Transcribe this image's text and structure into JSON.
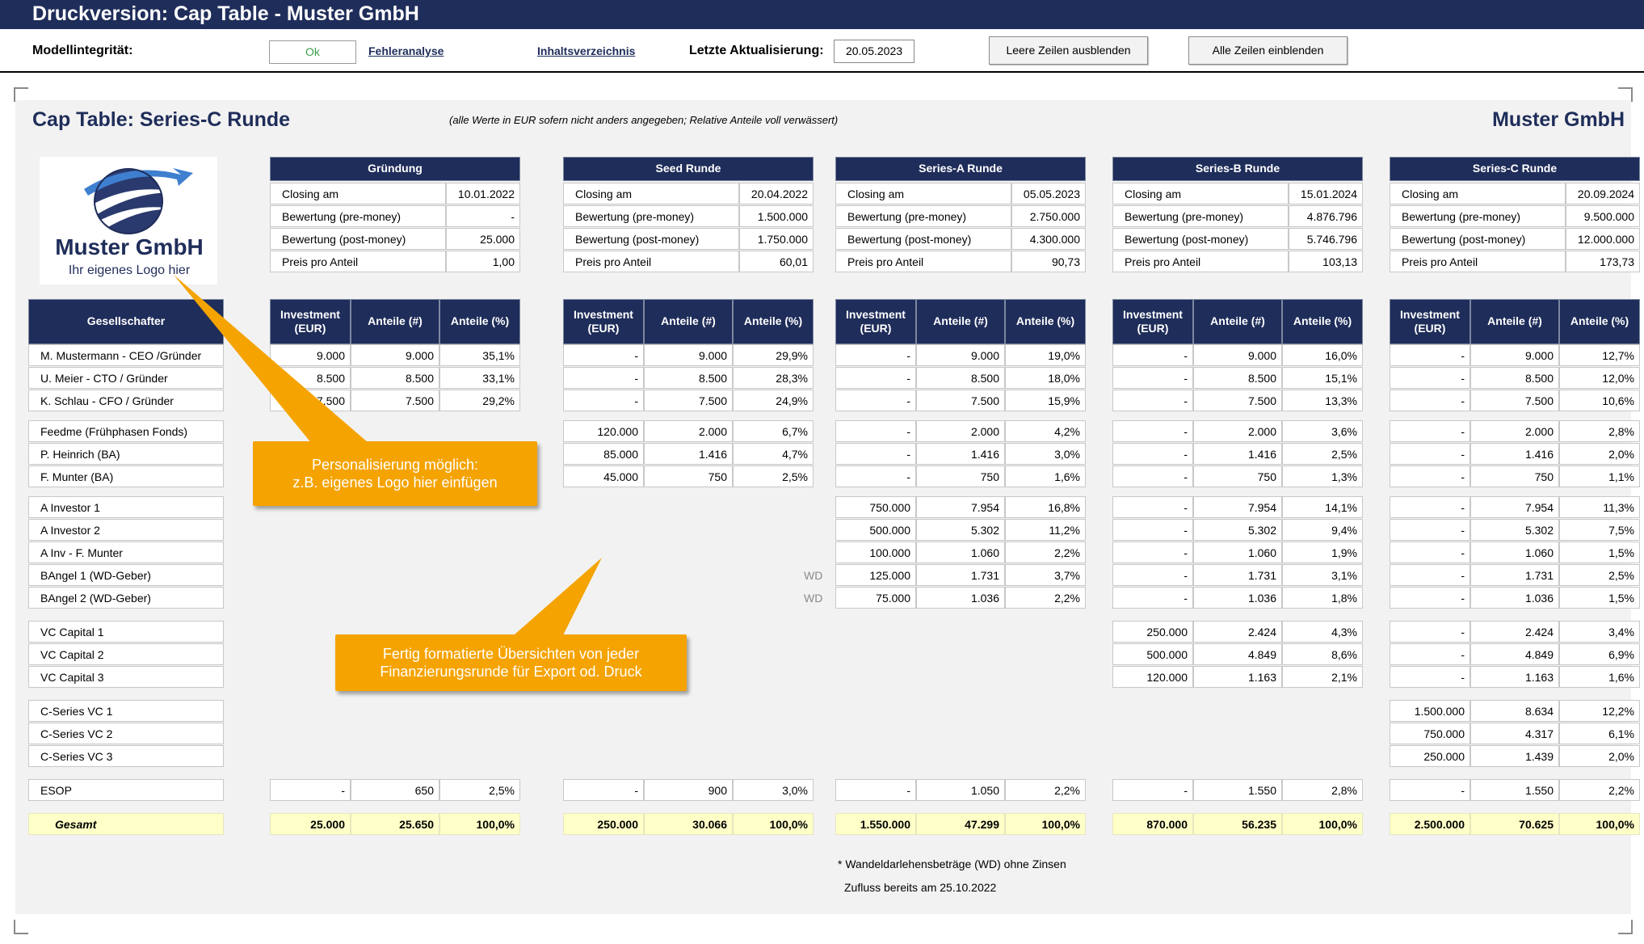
{
  "window": {
    "title": "Druckversion: Cap Table - Muster GmbH"
  },
  "toolbar": {
    "integrity_label": "Modellintegrität:",
    "integrity_value": "Ok",
    "error_link": "Fehleranalyse",
    "toc_link": "Inhaltsverzeichnis",
    "update_label": "Letzte Aktualisierung:",
    "update_date": "20.05.2023",
    "hide_button": "Leere Zeilen ausblenden",
    "show_button": "Alle Zeilen einblenden"
  },
  "sheet": {
    "title": "Cap Table: Series-C Runde",
    "note": "(alle Werte in EUR sofern nicht anders angegeben; Relative Anteile voll verwässert)",
    "company": "Muster GmbH",
    "logo_name": "Muster GmbH",
    "logo_sub": "Ihr eigenes Logo hier"
  },
  "colors": {
    "header": "#1f2d5a",
    "callout": "#f5a300",
    "total": "#ffffc8",
    "ok": "#3aa04a"
  },
  "info_labels": [
    "Closing am",
    "Bewertung (pre-money)",
    "Bewertung (post-money)",
    "Preis pro Anteil"
  ],
  "shareholder_header": "Gesellschafter",
  "col_headers": [
    "Investment (EUR)",
    "Anteile (#)",
    "Anteile (%)"
  ],
  "shareholders": [
    "M. Mustermann - CEO /Gründer",
    "U. Meier - CTO / Gründer",
    "K. Schlau - CFO / Gründer",
    "Feedme (Frühphasen Fonds)",
    "P. Heinrich (BA)",
    "F. Munter (BA)",
    "A Investor 1",
    "A Investor 2",
    "A Inv - F. Munter",
    "BAngel 1 (WD-Geber)",
    "BAngel 2 (WD-Geber)",
    "VC Capital 1",
    "VC Capital 2",
    "VC Capital 3",
    "C-Series VC 1",
    "C-Series VC 2",
    "C-Series VC 3",
    "ESOP"
  ],
  "total_label": "Gesamt",
  "rounds": [
    {
      "name": "Gründung",
      "info": [
        "10.01.2022",
        "-",
        "25.000",
        "1,00"
      ],
      "rows": [
        [
          "9.000",
          "9.000",
          "35,1%"
        ],
        [
          "8.500",
          "8.500",
          "33,1%"
        ],
        [
          "7.500",
          "7.500",
          "29,2%"
        ],
        null,
        null,
        null,
        null,
        null,
        null,
        null,
        null,
        null,
        null,
        null,
        null,
        null,
        null,
        [
          "-",
          "650",
          "2,5%"
        ]
      ],
      "total": [
        "25.000",
        "25.650",
        "100,0%"
      ]
    },
    {
      "name": "Seed Runde",
      "info": [
        "20.04.2022",
        "1.500.000",
        "1.750.000",
        "60,01"
      ],
      "rows": [
        [
          "-",
          "9.000",
          "29,9%"
        ],
        [
          "-",
          "8.500",
          "28,3%"
        ],
        [
          "-",
          "7.500",
          "24,9%"
        ],
        [
          "120.000",
          "2.000",
          "6,7%"
        ],
        [
          "85.000",
          "1.416",
          "4,7%"
        ],
        [
          "45.000",
          "750",
          "2,5%"
        ],
        null,
        null,
        null,
        null,
        null,
        null,
        null,
        null,
        null,
        null,
        null,
        [
          "-",
          "900",
          "3,0%"
        ]
      ],
      "total": [
        "250.000",
        "30.066",
        "100,0%"
      ]
    },
    {
      "name": "Series-A Runde",
      "info": [
        "05.05.2023",
        "2.750.000",
        "4.300.000",
        "90,73"
      ],
      "rows": [
        [
          "-",
          "9.000",
          "19,0%"
        ],
        [
          "-",
          "8.500",
          "18,0%"
        ],
        [
          "-",
          "7.500",
          "15,9%"
        ],
        [
          "-",
          "2.000",
          "4,2%"
        ],
        [
          "-",
          "1.416",
          "3,0%"
        ],
        [
          "-",
          "750",
          "1,6%"
        ],
        [
          "750.000",
          "7.954",
          "16,8%"
        ],
        [
          "500.000",
          "5.302",
          "11,2%"
        ],
        [
          "100.000",
          "1.060",
          "2,2%"
        ],
        [
          "125.000",
          "1.731",
          "3,7%"
        ],
        [
          "75.000",
          "1.036",
          "2,2%"
        ],
        null,
        null,
        null,
        null,
        null,
        null,
        [
          "-",
          "1.050",
          "2,2%"
        ]
      ],
      "total": [
        "1.550.000",
        "47.299",
        "100,0%"
      ]
    },
    {
      "name": "Series-B Runde",
      "info": [
        "15.01.2024",
        "4.876.796",
        "5.746.796",
        "103,13"
      ],
      "rows": [
        [
          "-",
          "9.000",
          "16,0%"
        ],
        [
          "-",
          "8.500",
          "15,1%"
        ],
        [
          "-",
          "7.500",
          "13,3%"
        ],
        [
          "-",
          "2.000",
          "3,6%"
        ],
        [
          "-",
          "1.416",
          "2,5%"
        ],
        [
          "-",
          "750",
          "1,3%"
        ],
        [
          "-",
          "7.954",
          "14,1%"
        ],
        [
          "-",
          "5.302",
          "9,4%"
        ],
        [
          "-",
          "1.060",
          "1,9%"
        ],
        [
          "-",
          "1.731",
          "3,1%"
        ],
        [
          "-",
          "1.036",
          "1,8%"
        ],
        [
          "250.000",
          "2.424",
          "4,3%"
        ],
        [
          "500.000",
          "4.849",
          "8,6%"
        ],
        [
          "120.000",
          "1.163",
          "2,1%"
        ],
        null,
        null,
        null,
        [
          "-",
          "1.550",
          "2,8%"
        ]
      ],
      "total": [
        "870.000",
        "56.235",
        "100,0%"
      ]
    },
    {
      "name": "Series-C Runde",
      "info": [
        "20.09.2024",
        "9.500.000",
        "12.000.000",
        "173,73"
      ],
      "rows": [
        [
          "-",
          "9.000",
          "12,7%"
        ],
        [
          "-",
          "8.500",
          "12,0%"
        ],
        [
          "-",
          "7.500",
          "10,6%"
        ],
        [
          "-",
          "2.000",
          "2,8%"
        ],
        [
          "-",
          "1.416",
          "2,0%"
        ],
        [
          "-",
          "750",
          "1,1%"
        ],
        [
          "-",
          "7.954",
          "11,3%"
        ],
        [
          "-",
          "5.302",
          "7,5%"
        ],
        [
          "-",
          "1.060",
          "1,5%"
        ],
        [
          "-",
          "1.731",
          "2,5%"
        ],
        [
          "-",
          "1.036",
          "1,5%"
        ],
        [
          "-",
          "2.424",
          "3,4%"
        ],
        [
          "-",
          "4.849",
          "6,9%"
        ],
        [
          "-",
          "1.163",
          "1,6%"
        ],
        [
          "1.500.000",
          "8.634",
          "12,2%"
        ],
        [
          "750.000",
          "4.317",
          "6,1%"
        ],
        [
          "250.000",
          "1.439",
          "2,0%"
        ],
        [
          "-",
          "1.550",
          "2,2%"
        ]
      ],
      "total": [
        "2.500.000",
        "70.625",
        "100,0%"
      ]
    }
  ],
  "wd_marks": [
    "WD",
    "WD"
  ],
  "callouts": [
    {
      "line1": "Personalisierung möglich:",
      "line2": "z.B. eigenes Logo hier einfügen"
    },
    {
      "line1": "Fertig formatierte Übersichten von jeder",
      "line2": "Finanzierungsrunde für Export od. Druck"
    }
  ],
  "footnote": {
    "line1": "* Wandeldarlehensbeträge (WD) ohne Zinsen",
    "line2": "Zufluss bereits am 25.10.2022"
  }
}
